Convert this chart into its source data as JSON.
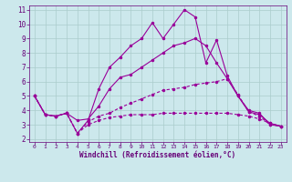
{
  "xlabel": "Windchill (Refroidissement éolien,°C)",
  "background_color": "#cce8ec",
  "grid_color": "#aacccc",
  "line_color": "#990099",
  "xlim": [
    -0.5,
    23.5
  ],
  "ylim": [
    1.8,
    11.3
  ],
  "yticks": [
    2,
    3,
    4,
    5,
    6,
    7,
    8,
    9,
    10,
    11
  ],
  "xticks": [
    0,
    1,
    2,
    3,
    4,
    5,
    6,
    7,
    8,
    9,
    10,
    11,
    12,
    13,
    14,
    15,
    16,
    17,
    18,
    19,
    20,
    21,
    22,
    23
  ],
  "line1_x": [
    0,
    1,
    2,
    3,
    4,
    5,
    6,
    7,
    8,
    9,
    10,
    11,
    12,
    13,
    14,
    15,
    16,
    17,
    18,
    19,
    20,
    21,
    22,
    23
  ],
  "line1_y": [
    5.0,
    3.7,
    3.6,
    3.8,
    2.4,
    3.3,
    5.5,
    7.0,
    7.7,
    8.5,
    9.0,
    10.1,
    9.0,
    10.0,
    11.0,
    10.5,
    7.3,
    8.9,
    6.4,
    5.0,
    4.0,
    3.8,
    3.0,
    2.9
  ],
  "line2_x": [
    0,
    1,
    2,
    3,
    4,
    5,
    6,
    7,
    8,
    9,
    10,
    11,
    12,
    13,
    14,
    15,
    16,
    17,
    18,
    19,
    20,
    21,
    22,
    23
  ],
  "line2_y": [
    5.0,
    3.7,
    3.6,
    3.8,
    3.3,
    3.4,
    4.3,
    5.5,
    6.3,
    6.5,
    7.0,
    7.5,
    8.0,
    8.5,
    8.7,
    9.0,
    8.5,
    7.3,
    6.2,
    5.0,
    3.9,
    3.7,
    3.1,
    2.9
  ],
  "line3_x": [
    0,
    1,
    2,
    3,
    4,
    5,
    6,
    7,
    8,
    9,
    10,
    11,
    12,
    13,
    14,
    15,
    16,
    17,
    18,
    19,
    20,
    21,
    22,
    23
  ],
  "line3_y": [
    5.0,
    3.7,
    3.6,
    3.8,
    2.4,
    3.2,
    3.6,
    3.8,
    4.2,
    4.5,
    4.8,
    5.1,
    5.4,
    5.5,
    5.6,
    5.8,
    5.9,
    6.0,
    6.2,
    5.1,
    3.9,
    3.6,
    3.0,
    2.9
  ],
  "line4_x": [
    0,
    1,
    2,
    3,
    4,
    5,
    6,
    7,
    8,
    9,
    10,
    11,
    12,
    13,
    14,
    15,
    16,
    17,
    18,
    19,
    20,
    21,
    22,
    23
  ],
  "line4_y": [
    5.0,
    3.7,
    3.6,
    3.8,
    2.4,
    3.0,
    3.3,
    3.5,
    3.6,
    3.7,
    3.7,
    3.7,
    3.8,
    3.8,
    3.8,
    3.8,
    3.8,
    3.8,
    3.8,
    3.7,
    3.6,
    3.4,
    3.1,
    2.9
  ]
}
